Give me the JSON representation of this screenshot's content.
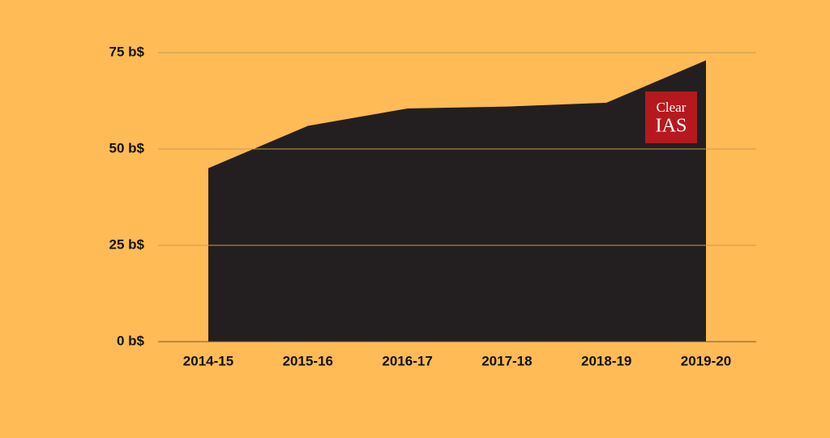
{
  "chart_data": {
    "type": "area",
    "categories": [
      "2014-15",
      "2015-16",
      "2016-17",
      "2017-18",
      "2018-19",
      "2019-20"
    ],
    "values": [
      45,
      56,
      60.5,
      61,
      62,
      73
    ],
    "color": "#231f20",
    "ylim": [
      0,
      75
    ],
    "yticks": [
      {
        "value": 0,
        "label": "0 b$"
      },
      {
        "value": 25,
        "label": "25 b$"
      },
      {
        "value": 50,
        "label": "50 b$"
      },
      {
        "value": 75,
        "label": "75 b$"
      }
    ],
    "grid": true,
    "logo": {
      "line1": "Clear",
      "line2": "IAS"
    }
  }
}
